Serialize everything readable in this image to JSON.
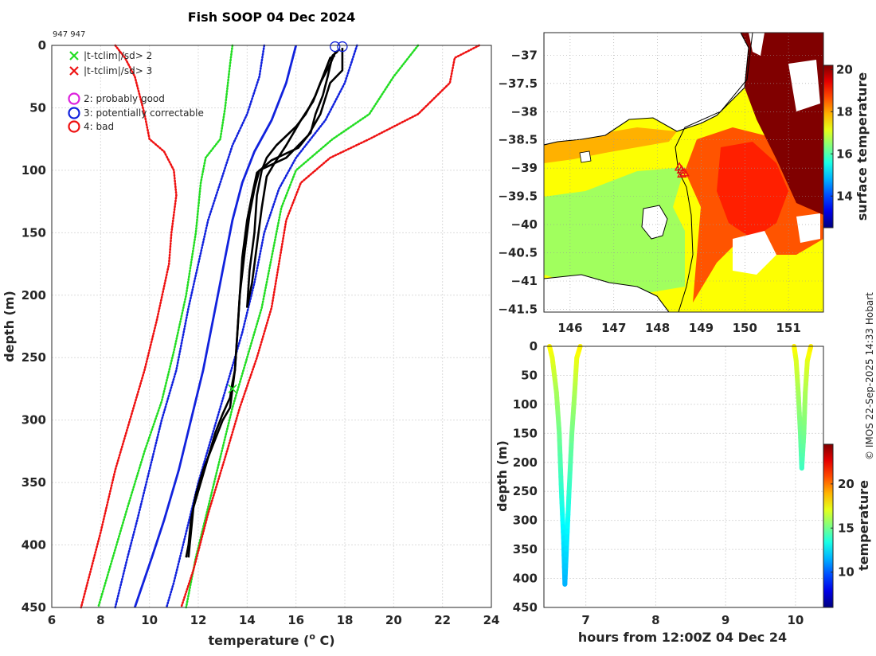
{
  "title": "Fish SOOP 04 Dec 2024",
  "station_label": "947 947",
  "credit": "© IMOS 22-Sep-2025 14:33 Hobart",
  "chart_data": [
    {
      "type": "line",
      "name": "profile",
      "xlabel": "temperature (",
      "xlabel_sup": "o",
      "xlabel_tail": " C)",
      "ylabel": "depth (m)",
      "xlim": [
        6,
        24
      ],
      "ylim": [
        0,
        450
      ],
      "y_reversed": true,
      "grid": true,
      "xticks": [
        6,
        8,
        10,
        12,
        14,
        16,
        18,
        20,
        22,
        24
      ],
      "yticks": [
        0,
        50,
        100,
        150,
        200,
        250,
        300,
        350,
        400,
        450
      ],
      "legend_position": "top-left",
      "legend": [
        {
          "label": "|t-tclim|/sd> 2",
          "marker": "x",
          "color": "#22dd22"
        },
        {
          "label": "|t-tclim|/sd> 3",
          "marker": "x",
          "color": "#ee1111"
        },
        {
          "label": "2: probably good",
          "marker": "o",
          "color": "#dd22dd"
        },
        {
          "label": "3: potentially correctable",
          "marker": "o",
          "color": "#1122dd"
        },
        {
          "label": "4: bad",
          "marker": "o",
          "color": "#ee1111"
        }
      ],
      "climatology": [
        {
          "id": "mean",
          "color": "#1122dd",
          "style": "solid",
          "points": [
            [
              16.0,
              0
            ],
            [
              15.6,
              30
            ],
            [
              15.0,
              60
            ],
            [
              14.3,
              85
            ],
            [
              13.8,
              110
            ],
            [
              13.4,
              140
            ],
            [
              13.1,
              170
            ],
            [
              12.7,
              210
            ],
            [
              12.2,
              260
            ],
            [
              11.7,
              300
            ],
            [
              11.2,
              340
            ],
            [
              10.6,
              380
            ],
            [
              10.1,
              410
            ],
            [
              9.4,
              450
            ]
          ]
        },
        {
          "id": "minus1sd",
          "color": "#1122dd",
          "style": "dotted",
          "points": [
            [
              14.7,
              0
            ],
            [
              14.5,
              25
            ],
            [
              14.0,
              55
            ],
            [
              13.4,
              80
            ],
            [
              12.9,
              110
            ],
            [
              12.4,
              140
            ],
            [
              12.0,
              175
            ],
            [
              11.6,
              210
            ],
            [
              11.1,
              260
            ],
            [
              10.5,
              300
            ],
            [
              10.0,
              340
            ],
            [
              9.5,
              380
            ],
            [
              9.1,
              410
            ],
            [
              8.6,
              450
            ]
          ]
        },
        {
          "id": "plus1sd",
          "color": "#1122dd",
          "style": "dotted",
          "points": [
            [
              18.5,
              0
            ],
            [
              18.0,
              30
            ],
            [
              17.2,
              60
            ],
            [
              16.0,
              90
            ],
            [
              15.3,
              115
            ],
            [
              14.7,
              150
            ],
            [
              14.3,
              190
            ],
            [
              13.8,
              230
            ],
            [
              13.2,
              270
            ],
            [
              12.6,
              310
            ],
            [
              12.0,
              350
            ],
            [
              11.5,
              390
            ],
            [
              11.0,
              430
            ],
            [
              10.7,
              450
            ]
          ]
        },
        {
          "id": "minus2sd",
          "color": "#22dd22",
          "style": "dotted",
          "points": [
            [
              13.4,
              0
            ],
            [
              13.3,
              15
            ],
            [
              13.1,
              50
            ],
            [
              12.9,
              75
            ],
            [
              12.3,
              90
            ],
            [
              12.1,
              110
            ],
            [
              11.9,
              150
            ],
            [
              11.5,
              200
            ],
            [
              11.0,
              245
            ],
            [
              10.5,
              285
            ],
            [
              9.8,
              325
            ],
            [
              9.1,
              370
            ],
            [
              8.5,
              410
            ],
            [
              7.9,
              450
            ]
          ]
        },
        {
          "id": "plus2sd",
          "color": "#22dd22",
          "style": "dotted",
          "points": [
            [
              21.0,
              0
            ],
            [
              20.0,
              25
            ],
            [
              19.0,
              55
            ],
            [
              17.5,
              75
            ],
            [
              16.0,
              100
            ],
            [
              15.4,
              130
            ],
            [
              15.0,
              170
            ],
            [
              14.6,
              210
            ],
            [
              14.0,
              250
            ],
            [
              13.4,
              290
            ],
            [
              12.9,
              330
            ],
            [
              12.4,
              370
            ],
            [
              11.9,
              410
            ],
            [
              11.5,
              450
            ]
          ]
        },
        {
          "id": "minus3sd",
          "color": "#ee1111",
          "style": "dotted",
          "points": [
            [
              8.6,
              0
            ],
            [
              9.0,
              10
            ],
            [
              9.4,
              25
            ],
            [
              9.8,
              55
            ],
            [
              10.0,
              75
            ],
            [
              10.6,
              85
            ],
            [
              11.0,
              100
            ],
            [
              11.1,
              120
            ],
            [
              10.9,
              150
            ],
            [
              10.8,
              175
            ],
            [
              10.3,
              220
            ],
            [
              9.8,
              260
            ],
            [
              9.2,
              300
            ],
            [
              8.6,
              340
            ],
            [
              8.0,
              390
            ],
            [
              7.6,
              420
            ],
            [
              7.2,
              450
            ]
          ]
        },
        {
          "id": "plus3sd",
          "color": "#ee1111",
          "style": "dotted",
          "points": [
            [
              23.5,
              0
            ],
            [
              22.5,
              10
            ],
            [
              22.3,
              30
            ],
            [
              21.0,
              55
            ],
            [
              19.0,
              75
            ],
            [
              17.4,
              90
            ],
            [
              16.2,
              110
            ],
            [
              15.6,
              140
            ],
            [
              15.3,
              175
            ],
            [
              15.0,
              210
            ],
            [
              14.4,
              250
            ],
            [
              13.7,
              290
            ],
            [
              13.1,
              330
            ],
            [
              12.4,
              375
            ],
            [
              11.8,
              420
            ],
            [
              11.3,
              450
            ]
          ]
        }
      ],
      "profiles": [
        {
          "id": "cast1",
          "color": "#000000",
          "points": [
            [
              17.6,
              8
            ],
            [
              17.4,
              10
            ],
            [
              17.2,
              20
            ],
            [
              16.8,
              40
            ],
            [
              16.4,
              55
            ],
            [
              16.0,
              65
            ],
            [
              15.2,
              80
            ],
            [
              14.8,
              90
            ],
            [
              14.6,
              100
            ],
            [
              14.4,
              120
            ],
            [
              14.3,
              150
            ],
            [
              14.1,
              180
            ],
            [
              14.0,
              210
            ]
          ]
        },
        {
          "id": "cast2",
          "color": "#000000",
          "points": [
            [
              17.8,
              3
            ],
            [
              17.6,
              6
            ],
            [
              17.4,
              15
            ],
            [
              17.0,
              30
            ],
            [
              16.7,
              45
            ],
            [
              16.2,
              60
            ],
            [
              15.6,
              80
            ],
            [
              15.1,
              95
            ],
            [
              14.8,
              105
            ],
            [
              14.6,
              130
            ],
            [
              14.4,
              160
            ],
            [
              14.2,
              190
            ],
            [
              14.0,
              210
            ]
          ]
        },
        {
          "id": "cast3",
          "color": "#000000",
          "points": [
            [
              17.7,
              5
            ],
            [
              17.5,
              8
            ],
            [
              17.3,
              25
            ],
            [
              17.1,
              40
            ],
            [
              16.8,
              55
            ],
            [
              16.6,
              70
            ],
            [
              16.0,
              82
            ],
            [
              15.6,
              90
            ],
            [
              14.5,
              100
            ],
            [
              14.3,
              115
            ],
            [
              14.1,
              135
            ],
            [
              13.9,
              165
            ],
            [
              13.7,
              200
            ],
            [
              13.6,
              230
            ],
            [
              13.5,
              260
            ],
            [
              13.4,
              275
            ],
            [
              13.3,
              290
            ],
            [
              13.0,
              300
            ],
            [
              12.6,
              320
            ],
            [
              12.2,
              340
            ],
            [
              11.9,
              360
            ],
            [
              11.7,
              380
            ],
            [
              11.6,
              400
            ],
            [
              11.5,
              410
            ]
          ]
        },
        {
          "id": "cast4",
          "color": "#000000",
          "points": [
            [
              17.9,
              2
            ],
            [
              17.9,
              20
            ],
            [
              17.4,
              30
            ],
            [
              17.0,
              55
            ],
            [
              16.5,
              72
            ],
            [
              16.1,
              82
            ],
            [
              15.0,
              92
            ],
            [
              14.4,
              102
            ],
            [
              14.2,
              120
            ],
            [
              14.0,
              140
            ],
            [
              13.8,
              170
            ],
            [
              13.7,
              200
            ],
            [
              13.6,
              230
            ],
            [
              13.5,
              260
            ],
            [
              13.4,
              270
            ],
            [
              13.3,
              282
            ],
            [
              13.0,
              295
            ],
            [
              12.7,
              310
            ],
            [
              12.4,
              330
            ],
            [
              12.1,
              350
            ],
            [
              11.8,
              370
            ],
            [
              11.7,
              390
            ],
            [
              11.6,
              410
            ]
          ]
        }
      ],
      "flags": [
        {
          "label": "3: potentially correctable",
          "x": 17.6,
          "y": 1
        },
        {
          "label": "3: potentially correctable",
          "x": 17.9,
          "y": 1
        }
      ],
      "outliers": [
        {
          "label": "|t-tclim|/sd> 2",
          "x": 13.4,
          "y": 275
        }
      ]
    },
    {
      "type": "heatmap",
      "name": "sst_map",
      "colorbar_label": "surface temperature",
      "color_range": [
        12.5,
        20.2
      ],
      "xlim": [
        145.4,
        151.8
      ],
      "ylim": [
        -41.55,
        -36.6
      ],
      "xticks": [
        146,
        147,
        148,
        149,
        150,
        151
      ],
      "yticks": [
        -37,
        -37.5,
        -38,
        -38.5,
        -39,
        -39.5,
        -40,
        -40.5,
        -41,
        -41.5
      ],
      "colorbar_ticks": [
        14,
        16,
        18,
        20
      ],
      "track": [
        {
          "lon": 148.5,
          "lat": -38.98
        },
        {
          "lon": 148.55,
          "lat": -39.03
        },
        {
          "lon": 148.62,
          "lat": -39.08
        },
        {
          "lon": 148.56,
          "lat": -39.1
        }
      ],
      "marker_color": "#ee1111"
    },
    {
      "type": "scatter",
      "name": "time_depth",
      "xlabel": "hours from 12:00Z 04 Dec 24",
      "ylabel": "depth (m)",
      "colorbar_label": "temperature",
      "xlim": [
        6.4,
        10.4
      ],
      "ylim": [
        0,
        450
      ],
      "y_reversed": true,
      "color_range": [
        6,
        24.5
      ],
      "xticks": [
        7,
        8,
        9,
        10
      ],
      "yticks": [
        0,
        50,
        100,
        150,
        200,
        250,
        300,
        350,
        400,
        450
      ],
      "colorbar_ticks": [
        10,
        15,
        20
      ],
      "casts": [
        {
          "points": [
            [
              6.48,
              0,
              17.8
            ],
            [
              6.52,
              20,
              17.2
            ],
            [
              6.58,
              80,
              16.0
            ],
            [
              6.62,
              150,
              15.0
            ],
            [
              6.65,
              250,
              13.8
            ],
            [
              6.68,
              330,
              12.6
            ],
            [
              6.7,
              410,
              11.5
            ],
            [
              6.73,
              330,
              12.6
            ],
            [
              6.76,
              250,
              13.8
            ],
            [
              6.8,
              150,
              15.0
            ],
            [
              6.84,
              80,
              16.0
            ],
            [
              6.87,
              20,
              17.2
            ],
            [
              6.92,
              0,
              17.8
            ]
          ]
        },
        {
          "points": [
            [
              9.98,
              0,
              17.9
            ],
            [
              10.01,
              25,
              17.0
            ],
            [
              10.04,
              80,
              16.0
            ],
            [
              10.07,
              150,
              15.0
            ],
            [
              10.09,
              210,
              14.0
            ],
            [
              10.12,
              150,
              15.0
            ],
            [
              10.14,
              80,
              16.0
            ],
            [
              10.17,
              25,
              17.0
            ],
            [
              10.22,
              0,
              17.9
            ]
          ]
        }
      ]
    }
  ]
}
